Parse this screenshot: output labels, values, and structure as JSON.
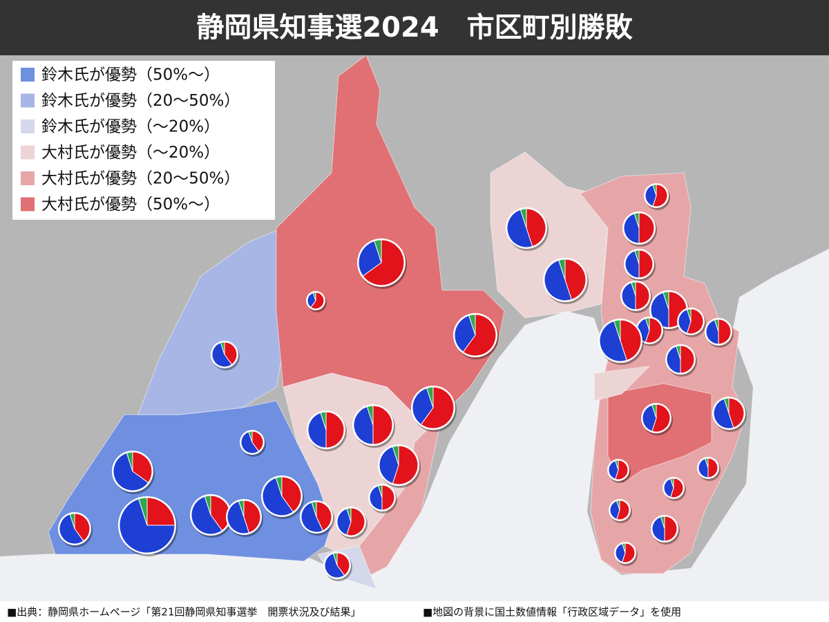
{
  "header": {
    "title": "静岡県知事選2024　市区町別勝敗"
  },
  "legend": [
    {
      "label": "鈴木氏が優勢（50%〜）",
      "color": "#6f8fe0"
    },
    {
      "label": "鈴木氏が優勢（20〜50%）",
      "color": "#a8b6e5"
    },
    {
      "label": "鈴木氏が優勢（〜20%）",
      "color": "#d4d8ea"
    },
    {
      "label": "大村氏が優勢（〜20%）",
      "color": "#ecd4d5"
    },
    {
      "label": "大村氏が優勢（20〜50%）",
      "color": "#e6a6a8"
    },
    {
      "label": "大村氏が優勢（50%〜）",
      "color": "#e07073"
    }
  ],
  "pie_colors": [
    "#1d3fd4",
    "#e2131b",
    "#2fa84b"
  ],
  "pies": [
    {
      "values": [
        55,
        40,
        5
      ]
    },
    {
      "values": [
        60,
        35,
        5
      ]
    },
    {
      "values": [
        70,
        25,
        5
      ]
    },
    {
      "values": [
        55,
        40,
        5
      ]
    },
    {
      "values": [
        55,
        40,
        5
      ]
    },
    {
      "values": [
        50,
        45,
        5
      ]
    },
    {
      "values": [
        55,
        40,
        5
      ]
    },
    {
      "values": [
        55,
        40,
        5
      ]
    },
    {
      "values": [
        52,
        43,
        5
      ]
    },
    {
      "values": [
        55,
        40,
        5
      ]
    },
    {
      "values": [
        45,
        50,
        5
      ]
    },
    {
      "values": [
        45,
        50,
        5
      ]
    },
    {
      "values": [
        40,
        55,
        5
      ]
    },
    {
      "values": [
        45,
        50,
        5
      ]
    },
    {
      "values": [
        40,
        55,
        5
      ]
    },
    {
      "values": [
        35,
        60,
        5
      ]
    },
    {
      "values": [
        30,
        65,
        5
      ]
    },
    {
      "values": [
        35,
        60,
        5
      ]
    },
    {
      "values": [
        35,
        60,
        5
      ]
    },
    {
      "values": [
        50,
        45,
        5
      ]
    },
    {
      "values": [
        50,
        45,
        5
      ]
    },
    {
      "values": [
        40,
        55,
        5
      ]
    },
    {
      "values": [
        45,
        50,
        5
      ]
    },
    {
      "values": [
        45,
        50,
        5
      ]
    },
    {
      "values": [
        45,
        50,
        5
      ]
    },
    {
      "values": [
        45,
        50,
        5
      ]
    },
    {
      "values": [
        40,
        55,
        5
      ]
    },
    {
      "values": [
        40,
        55,
        5
      ]
    },
    {
      "values": [
        45,
        50,
        5
      ]
    },
    {
      "values": [
        50,
        45,
        5
      ]
    },
    {
      "values": [
        45,
        50,
        5
      ]
    },
    {
      "values": [
        50,
        45,
        5
      ]
    },
    {
      "values": [
        40,
        55,
        5
      ]
    },
    {
      "values": [
        40,
        55,
        5
      ]
    },
    {
      "values": [
        45,
        50,
        5
      ]
    },
    {
      "values": [
        40,
        55,
        5
      ]
    },
    {
      "values": [
        40,
        55,
        5
      ]
    },
    {
      "values": [
        45,
        50,
        5
      ]
    },
    {
      "values": [
        40,
        55,
        5
      ]
    }
  ],
  "footer": {
    "source": "■出典：静岡県ホームページ「第21回静岡県知事選挙　開票状況及び結果」",
    "note": "■地図の背景に国土数値情報「行政区域データ」を使用"
  }
}
